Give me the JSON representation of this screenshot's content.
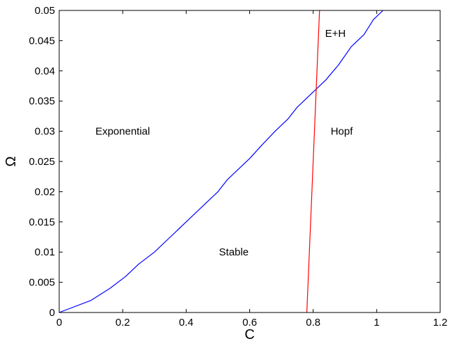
{
  "chart_data": {
    "type": "line",
    "title": "",
    "xlabel": "C",
    "ylabel": "Ω",
    "xlim": [
      0,
      1.2
    ],
    "ylim": [
      0,
      0.05
    ],
    "grid": false,
    "x_ticks": [
      "0",
      "0.2",
      "0.4",
      "0.6",
      "0.8",
      "1",
      "1.2"
    ],
    "x_tick_values": [
      0,
      0.2,
      0.4,
      0.6,
      0.8,
      1.0,
      1.2
    ],
    "y_ticks": [
      "0",
      "0.005",
      "0.01",
      "0.015",
      "0.02",
      "0.025",
      "0.03",
      "0.035",
      "0.04",
      "0.045",
      "0.05"
    ],
    "y_tick_values": [
      0,
      0.005,
      0.01,
      0.015,
      0.02,
      0.025,
      0.03,
      0.035,
      0.04,
      0.045,
      0.05
    ],
    "series": [
      {
        "color": "#0000ff",
        "x": [
          0,
          0.1,
          0.16,
          0.21,
          0.25,
          0.3,
          0.35,
          0.4,
          0.45,
          0.5,
          0.53,
          0.6,
          0.64,
          0.68,
          0.72,
          0.75,
          0.8,
          0.84,
          0.88,
          0.92,
          0.96,
          0.99,
          1.02
        ],
        "y": [
          0,
          0.002,
          0.004,
          0.006,
          0.008,
          0.01,
          0.0125,
          0.015,
          0.0175,
          0.02,
          0.022,
          0.0255,
          0.0278,
          0.03,
          0.032,
          0.034,
          0.0365,
          0.0385,
          0.041,
          0.044,
          0.046,
          0.0485,
          0.05
        ]
      },
      {
        "color": "#ff0000",
        "x": [
          0.78,
          0.8,
          0.82
        ],
        "y": [
          0,
          0.025,
          0.05
        ]
      }
    ],
    "annotations": [
      {
        "text": "Exponential",
        "x": 0.2,
        "y": 0.03
      },
      {
        "text": "Stable",
        "x": 0.55,
        "y": 0.01
      },
      {
        "text": "Hopf",
        "x": 0.89,
        "y": 0.03
      },
      {
        "text": "E+H",
        "x": 0.87,
        "y": 0.0462
      }
    ]
  }
}
